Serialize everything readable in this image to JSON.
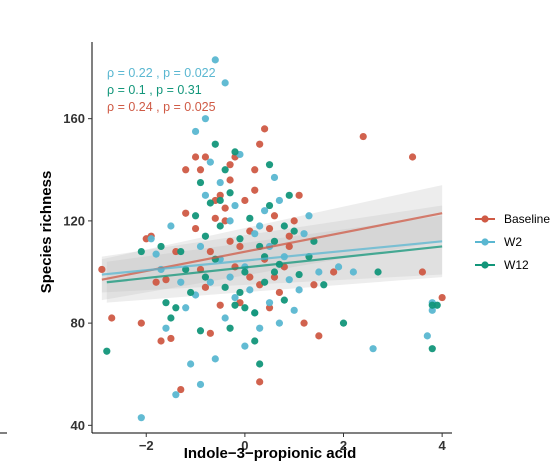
{
  "chart_data": {
    "type": "scatter",
    "title": "",
    "xlabel": "Indole−3−propionic acid",
    "ylabel": "Species richness",
    "xlim": [
      -3.1,
      4.2
    ],
    "ylim": [
      37,
      190
    ],
    "x_ticks": [
      -2,
      0,
      2,
      4
    ],
    "x_tick_labels": [
      "−2",
      "0",
      "2",
      "4"
    ],
    "y_ticks": [
      40,
      80,
      120,
      160
    ],
    "y_tick_labels": [
      "40",
      "80",
      "120",
      "160"
    ],
    "legend_placement": "right",
    "grid": false,
    "annotations": [
      {
        "text": "ρ = 0.22 , p = 0.022",
        "color": "#CF5A45"
      },
      {
        "text": "ρ = 0.1 , p = 0.31",
        "color": "#5AB7D1"
      },
      {
        "text": "ρ = 0.24 , p = 0.025",
        "color": "#12967A"
      }
    ],
    "series": [
      {
        "name": "Baseline",
        "color": "#CF5A45",
        "fit": {
          "x": [
            -2.9,
            4.0
          ],
          "y": [
            97,
            123
          ],
          "ci_low": [
            89,
            112
          ],
          "ci_high": [
            105,
            134
          ]
        },
        "points": [
          [
            -2.9,
            101
          ],
          [
            -2.7,
            82
          ],
          [
            -2.0,
            113
          ],
          [
            -1.9,
            114
          ],
          [
            -1.8,
            96
          ],
          [
            -1.5,
            74
          ],
          [
            -1.3,
            54
          ],
          [
            -1.2,
            140
          ],
          [
            -1.0,
            145
          ],
          [
            -0.9,
            140
          ],
          [
            -0.8,
            145
          ],
          [
            -0.7,
            108
          ],
          [
            -0.6,
            121
          ],
          [
            -0.5,
            130
          ],
          [
            -0.4,
            125
          ],
          [
            -0.3,
            136
          ],
          [
            -0.2,
            145
          ],
          [
            -0.1,
            110
          ],
          [
            0.0,
            128
          ],
          [
            0.1,
            116
          ],
          [
            0.2,
            140
          ],
          [
            0.3,
            150
          ],
          [
            0.4,
            156
          ],
          [
            0.5,
            117
          ],
          [
            0.6,
            98
          ],
          [
            0.7,
            92
          ],
          [
            0.8,
            102
          ],
          [
            0.9,
            110
          ],
          [
            1.0,
            120
          ],
          [
            1.2,
            80
          ],
          [
            1.4,
            95
          ],
          [
            0.3,
            57
          ],
          [
            -0.6,
            128
          ],
          [
            -0.3,
            112
          ],
          [
            0.2,
            132
          ],
          [
            -1.6,
            97
          ],
          [
            -1.4,
            108
          ],
          [
            0.5,
            86
          ],
          [
            -0.8,
            94
          ],
          [
            -0.2,
            102
          ],
          [
            0.1,
            98
          ],
          [
            -0.5,
            87
          ],
          [
            -1.2,
            123
          ],
          [
            0.9,
            114
          ],
          [
            1.1,
            130
          ],
          [
            2.4,
            153
          ],
          [
            3.4,
            145
          ],
          [
            3.6,
            100
          ],
          [
            4.0,
            90
          ],
          [
            1.8,
            100
          ],
          [
            -0.7,
            76
          ],
          [
            -1.7,
            73
          ],
          [
            -0.4,
            120
          ],
          [
            0.6,
            122
          ],
          [
            -0.9,
            101
          ],
          [
            -0.1,
            88
          ],
          [
            0.4,
            105
          ],
          [
            -1.0,
            117
          ],
          [
            0.3,
            95
          ],
          [
            -2.1,
            80
          ],
          [
            1.5,
            75
          ],
          [
            -0.3,
            142
          ]
        ]
      },
      {
        "name": "W2",
        "color": "#5AB7D1",
        "fit": {
          "x": [
            -2.9,
            4.0
          ],
          "y": [
            99,
            112
          ],
          "ci_low": [
            92,
            99
          ],
          "ci_high": [
            106,
            126
          ]
        },
        "points": [
          [
            -2.1,
            43
          ],
          [
            -1.9,
            113
          ],
          [
            -1.7,
            101
          ],
          [
            -1.6,
            78
          ],
          [
            -1.4,
            52
          ],
          [
            -1.3,
            96
          ],
          [
            -1.2,
            86
          ],
          [
            -1.0,
            155
          ],
          [
            -0.9,
            110
          ],
          [
            -0.8,
            160
          ],
          [
            -0.7,
            96
          ],
          [
            -0.6,
            183
          ],
          [
            -0.5,
            135
          ],
          [
            -0.4,
            174
          ],
          [
            -0.3,
            120
          ],
          [
            -0.2,
            90
          ],
          [
            -0.1,
            146
          ],
          [
            0.0,
            102
          ],
          [
            0.1,
            93
          ],
          [
            0.2,
            115
          ],
          [
            0.3,
            78
          ],
          [
            0.4,
            124
          ],
          [
            0.5,
            88
          ],
          [
            0.6,
            137
          ],
          [
            0.7,
            80
          ],
          [
            0.8,
            106
          ],
          [
            1.0,
            85
          ],
          [
            1.2,
            115
          ],
          [
            1.5,
            100
          ],
          [
            1.9,
            102
          ],
          [
            2.2,
            100
          ],
          [
            2.6,
            70
          ],
          [
            -1.1,
            64
          ],
          [
            -0.6,
            66
          ],
          [
            0.0,
            71
          ],
          [
            3.7,
            75
          ],
          [
            3.8,
            85
          ],
          [
            3.8,
            88
          ],
          [
            -1.5,
            118
          ],
          [
            -0.8,
            130
          ],
          [
            -0.2,
            126
          ],
          [
            0.3,
            118
          ],
          [
            0.9,
            97
          ],
          [
            -0.5,
            105
          ],
          [
            -1.0,
            91
          ],
          [
            0.5,
            110
          ],
          [
            -0.3,
            98
          ],
          [
            1.1,
            93
          ],
          [
            -1.8,
            107
          ],
          [
            0.2,
            84
          ],
          [
            -0.9,
            56
          ],
          [
            1.3,
            122
          ],
          [
            -0.4,
            82
          ],
          [
            0.7,
            128
          ],
          [
            -0.7,
            143
          ]
        ]
      },
      {
        "name": "W12",
        "color": "#12967A",
        "fit": {
          "x": [
            -2.8,
            4.0
          ],
          "y": [
            96,
            110
          ],
          "ci_low": [
            88,
            98
          ],
          "ci_high": [
            104,
            122
          ]
        },
        "points": [
          [
            -2.8,
            69
          ],
          [
            -2.1,
            108
          ],
          [
            -1.7,
            110
          ],
          [
            -1.5,
            82
          ],
          [
            -1.4,
            86
          ],
          [
            -1.2,
            101
          ],
          [
            -1.1,
            92
          ],
          [
            -1.0,
            122
          ],
          [
            -0.9,
            135
          ],
          [
            -0.8,
            114
          ],
          [
            -0.7,
            127
          ],
          [
            -0.6,
            105
          ],
          [
            -0.5,
            118
          ],
          [
            -0.4,
            94
          ],
          [
            -0.3,
            131
          ],
          [
            -0.2,
            87
          ],
          [
            -0.1,
            113
          ],
          [
            0.0,
            100
          ],
          [
            0.1,
            121
          ],
          [
            0.2,
            84
          ],
          [
            0.3,
            110
          ],
          [
            0.4,
            96
          ],
          [
            0.5,
            126
          ],
          [
            0.6,
            112
          ],
          [
            0.7,
            103
          ],
          [
            0.8,
            89
          ],
          [
            1.0,
            116
          ],
          [
            1.3,
            106
          ],
          [
            1.6,
            95
          ],
          [
            2.0,
            80
          ],
          [
            2.7,
            100
          ],
          [
            3.8,
            87
          ],
          [
            3.9,
            87
          ],
          [
            3.8,
            70
          ],
          [
            -0.9,
            77
          ],
          [
            -0.3,
            78
          ],
          [
            0.2,
            73
          ],
          [
            -0.6,
            150
          ],
          [
            -0.2,
            147
          ],
          [
            0.5,
            142
          ],
          [
            0.9,
            130
          ],
          [
            -1.3,
            108
          ],
          [
            -0.8,
            98
          ],
          [
            0.4,
            106
          ],
          [
            0.0,
            86
          ],
          [
            1.1,
            99
          ],
          [
            -0.5,
            128
          ],
          [
            -1.6,
            88
          ],
          [
            0.8,
            118
          ],
          [
            0.3,
            64
          ],
          [
            -0.1,
            92
          ],
          [
            0.6,
            100
          ],
          [
            1.4,
            112
          ],
          [
            -0.4,
            140
          ]
        ]
      }
    ]
  }
}
